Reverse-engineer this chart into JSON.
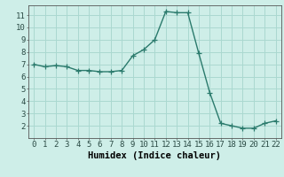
{
  "x": [
    0,
    1,
    2,
    3,
    4,
    5,
    6,
    7,
    8,
    9,
    10,
    11,
    12,
    13,
    14,
    15,
    16,
    17,
    18,
    19,
    20,
    21,
    22
  ],
  "y": [
    7.0,
    6.8,
    6.9,
    6.8,
    6.5,
    6.5,
    6.4,
    6.4,
    6.5,
    7.7,
    8.2,
    9.0,
    11.3,
    11.2,
    11.2,
    7.9,
    4.7,
    2.2,
    2.0,
    1.8,
    1.8,
    2.2,
    2.4
  ],
  "line_color": "#2a7a6c",
  "marker": "+",
  "marker_size": 4,
  "bg_color": "#ceeee8",
  "grid_color": "#aad8d0",
  "xlabel": "Humidex (Indice chaleur)",
  "xlim": [
    -0.5,
    22.5
  ],
  "ylim": [
    1.0,
    11.8
  ],
  "yticks": [
    2,
    3,
    4,
    5,
    6,
    7,
    8,
    9,
    10,
    11
  ],
  "xticks": [
    0,
    1,
    2,
    3,
    4,
    5,
    6,
    7,
    8,
    9,
    10,
    11,
    12,
    13,
    14,
    15,
    16,
    17,
    18,
    19,
    20,
    21,
    22
  ],
  "xlabel_fontsize": 7.5,
  "tick_fontsize": 6.5,
  "line_width": 1.0,
  "marker_edge_width": 0.9
}
